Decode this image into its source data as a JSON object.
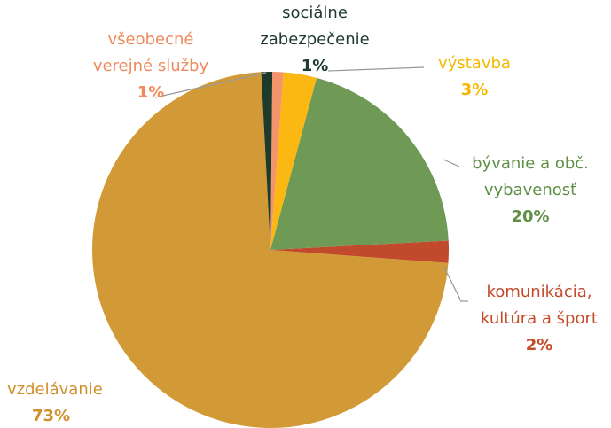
{
  "chart_data": {
    "type": "pie",
    "categories": [
      "sociálne zabezpečenie",
      "všeobecné verejné služby",
      "výstavba",
      "bývanie a obč. vybavenosť",
      "komunikácia, kultúra a šport",
      "vzdelávanie"
    ],
    "values": [
      1,
      1,
      3,
      20,
      2,
      73
    ],
    "value_labels": [
      "1%",
      "1%",
      "3%",
      "20%",
      "2%",
      "73%"
    ],
    "colors": [
      "#1e3a2a",
      "#f4946a",
      "#fbb812",
      "#6f9a55",
      "#c1492c",
      "#d29a36"
    ],
    "label_colors": [
      "#1f3b2e",
      "#ef8a5c",
      "#f5b800",
      "#5f8f45",
      "#c44a2a",
      "#d0902c"
    ]
  }
}
